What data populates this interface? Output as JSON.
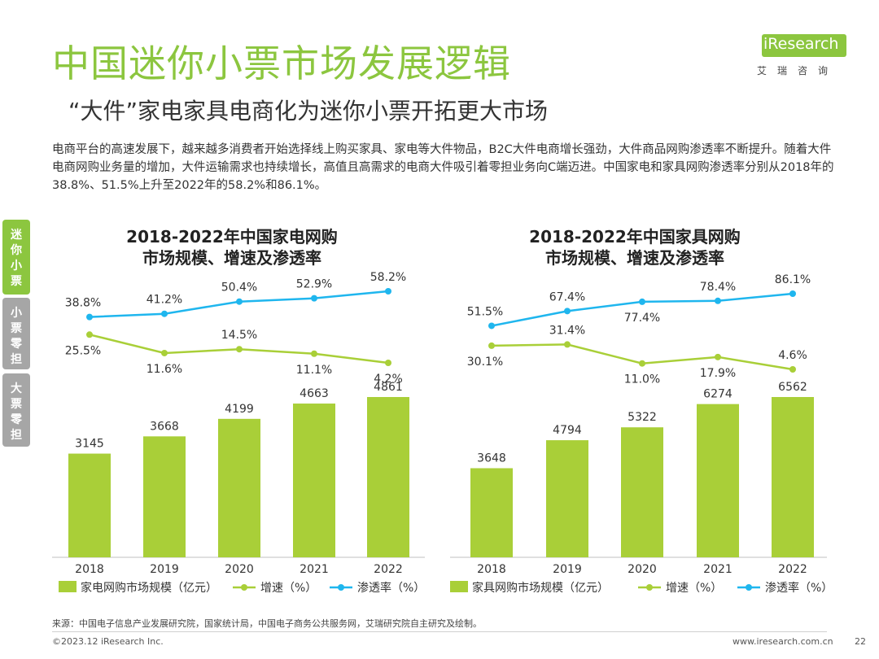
{
  "header": {
    "title": "中国迷你小票市场发展逻辑",
    "subtitle": "“大件”家电家具电商化为迷你小票开拓更大市场"
  },
  "logo": {
    "brand": "iResearch",
    "cn_name": "艾瑞咨询"
  },
  "description": "电商平台的高速发展下，越来越多消费者开始选择线上购买家具、家电等大件物品，B2C大件电商增长强劲，大件商品网购渗透率不断提升。随着大件电商网购业务量的增加，大件运输需求也持续增长，高值且高需求的电商大件吸引着零担业务向C端迈进。中国家电和家具网购渗透率分别从2018年的38.8%、51.5%上升至2022年的58.2%和86.1%。",
  "side_tabs": [
    {
      "label": "迷你小票",
      "active": true
    },
    {
      "label": "小票零担",
      "active": false
    },
    {
      "label": "大票零担",
      "active": false
    }
  ],
  "colors": {
    "accent_green": "#8cc63f",
    "bar_green": "#a9cf38",
    "growth_line": "#a9cf38",
    "penetration_line": "#1fb6ee",
    "tab_gray": "#a6a6a6"
  },
  "chart_data": [
    {
      "type": "bar",
      "title_line1": "2018-2022年中国家电网购",
      "title_line2": "市场规模、增速及渗透率",
      "categories": [
        "2018",
        "2019",
        "2020",
        "2021",
        "2022"
      ],
      "bar_max": 5400,
      "line_range": [
        0,
        60
      ],
      "series": [
        {
          "name": "家电网购市场规模（亿元）",
          "kind": "bar",
          "values": [
            3145,
            3668,
            4199,
            4663,
            4861
          ],
          "labels": [
            "3145",
            "3668",
            "4199",
            "4663",
            "4861"
          ]
        },
        {
          "name": "增速（%）",
          "kind": "line",
          "values": [
            25.5,
            11.6,
            14.5,
            11.1,
            4.2
          ],
          "labels": [
            "25.5%",
            "11.6%",
            "14.5%",
            "11.1%",
            "4.2%"
          ],
          "label_pos": [
            "below",
            "below",
            "above",
            "below",
            "below"
          ]
        },
        {
          "name": "渗透率（%）",
          "kind": "line",
          "values": [
            38.8,
            41.2,
            50.4,
            52.9,
            58.2
          ],
          "labels": [
            "38.8%",
            "41.2%",
            "50.4%",
            "52.9%",
            "58.2%"
          ],
          "label_pos": [
            "above",
            "above",
            "above",
            "above",
            "above"
          ]
        }
      ],
      "legend": "bottom"
    },
    {
      "type": "bar",
      "title_line1": "2018-2022年中国家具网购",
      "title_line2": "市场规模、增速及渗透率",
      "categories": [
        "2018",
        "2019",
        "2020",
        "2021",
        "2022"
      ],
      "bar_max": 7300,
      "line_range": [
        0,
        90
      ],
      "series": [
        {
          "name": "家具网购市场规模（亿元）",
          "kind": "bar",
          "values": [
            3648,
            4794,
            5322,
            6274,
            6562
          ],
          "labels": [
            "3648",
            "4794",
            "5322",
            "6274",
            "6562"
          ]
        },
        {
          "name": "增速（%）",
          "kind": "line",
          "values": [
            30.1,
            31.4,
            11.0,
            17.9,
            4.6
          ],
          "labels": [
            "30.1%",
            "31.4%",
            "11.0%",
            "17.9%",
            "4.6%"
          ],
          "label_pos": [
            "below",
            "above",
            "below",
            "below",
            "above"
          ]
        },
        {
          "name": "渗透率（%）",
          "kind": "line",
          "values": [
            51.5,
            67.4,
            77.4,
            78.4,
            86.1
          ],
          "labels": [
            "51.5%",
            "67.4%",
            "77.4%",
            "78.4%",
            "86.1%"
          ],
          "label_pos": [
            "above",
            "above",
            "below",
            "above",
            "above"
          ]
        }
      ],
      "legend": "bottom"
    }
  ],
  "footer": {
    "source": "来源：中国电子信息产业发展研究院，国家统计局，中国电子商务公共服务网，艾瑞研究院自主研究及绘制。",
    "copyright": "©2023.12 iResearch Inc.",
    "website": "www.iresearch.com.cn",
    "page": "22"
  }
}
